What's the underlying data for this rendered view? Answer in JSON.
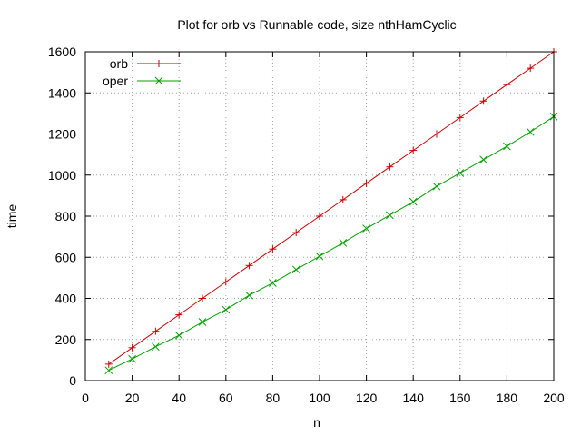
{
  "chart_data": {
    "type": "line",
    "title": "Plot for orb vs Runnable code, size nthHamCyclic",
    "xlabel": "n",
    "ylabel": "time",
    "xlim": [
      0,
      200
    ],
    "ylim": [
      0,
      1600
    ],
    "xticks": [
      0,
      20,
      40,
      60,
      80,
      100,
      120,
      140,
      160,
      180,
      200
    ],
    "yticks": [
      0,
      200,
      400,
      600,
      800,
      1000,
      1200,
      1400,
      1600
    ],
    "grid": true,
    "legend_position": "top-left",
    "x": [
      10,
      20,
      30,
      40,
      50,
      60,
      70,
      80,
      90,
      100,
      110,
      120,
      130,
      140,
      150,
      160,
      170,
      180,
      190,
      200
    ],
    "series": [
      {
        "name": "orb",
        "color": "#cc0000",
        "marker": "plus",
        "values": [
          80,
          160,
          240,
          320,
          400,
          480,
          560,
          640,
          720,
          800,
          880,
          960,
          1040,
          1120,
          1200,
          1280,
          1360,
          1440,
          1520,
          1600
        ]
      },
      {
        "name": "oper",
        "color": "#00a000",
        "marker": "cross",
        "values": [
          50,
          105,
          165,
          220,
          285,
          345,
          415,
          475,
          540,
          605,
          670,
          740,
          805,
          870,
          945,
          1010,
          1075,
          1140,
          1210,
          1285
        ]
      }
    ]
  }
}
